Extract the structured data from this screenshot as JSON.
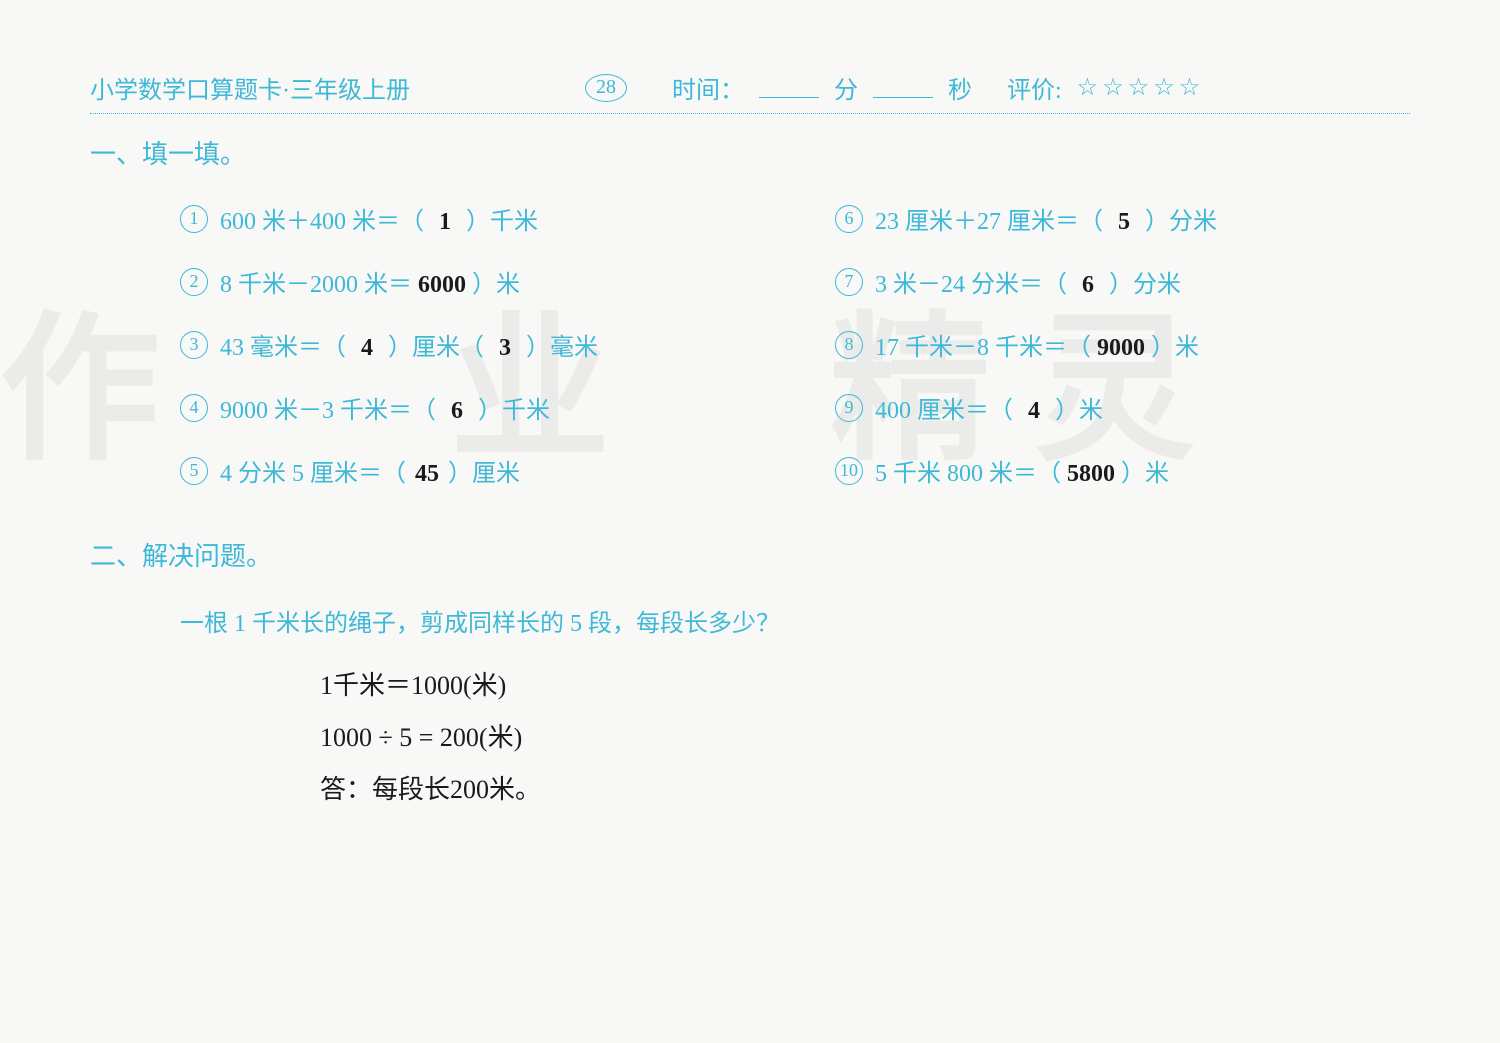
{
  "header": {
    "title": "小学数学口算题卡·三年级上册",
    "page_number": "28",
    "time_label": "时间：",
    "time_min_label": "分",
    "time_sec_label": "秒",
    "rating_label": "评价:",
    "stars": "☆☆☆☆☆"
  },
  "section1": {
    "title": "一、填一填。",
    "problems_left": [
      {
        "num": "1",
        "before": "600 米＋400 米＝（",
        "answer": "1",
        "after": "）千米"
      },
      {
        "num": "2",
        "before": "8 千米－2000 米＝",
        "answer": "6000",
        "after": "）米"
      },
      {
        "num": "3",
        "before": "43 毫米＝（",
        "answer": "4",
        "mid": "）厘米（",
        "answer2": "3",
        "after": "）毫米"
      },
      {
        "num": "4",
        "before": "9000 米－3 千米＝（",
        "answer": "6",
        "after": "）千米"
      },
      {
        "num": "5",
        "before": "4 分米 5 厘米＝（",
        "answer": "45",
        "after": "）厘米"
      }
    ],
    "problems_right": [
      {
        "num": "6",
        "before": "23 厘米＋27 厘米＝（",
        "answer": "5",
        "after": "）分米"
      },
      {
        "num": "7",
        "before": "3 米－24 分米＝（",
        "answer": "6",
        "after": "）分米"
      },
      {
        "num": "8",
        "before": "17 千米－8 千米＝（",
        "answer": "9000",
        "after": "）米"
      },
      {
        "num": "9",
        "before": "400 厘米＝（",
        "answer": "4",
        "after": "）米"
      },
      {
        "num": "10",
        "before": "5 千米 800 米＝（",
        "answer": "5800",
        "after": "）米"
      }
    ]
  },
  "section2": {
    "title": "二、解决问题。",
    "question": "一根 1 千米长的绳子，剪成同样长的 5 段，每段长多少？",
    "work_lines": [
      "1千米＝1000(米)",
      "1000 ÷ 5 = 200(米)",
      "答：每段长200米。"
    ]
  },
  "watermarks": {
    "text1": "作",
    "text2": "业",
    "text3": "精 灵"
  },
  "colors": {
    "primary": "#3eb8d8",
    "handwriting": "#1a1a1a",
    "background": "#f8f8f6",
    "watermark": "rgba(150,150,150,0.12)"
  }
}
